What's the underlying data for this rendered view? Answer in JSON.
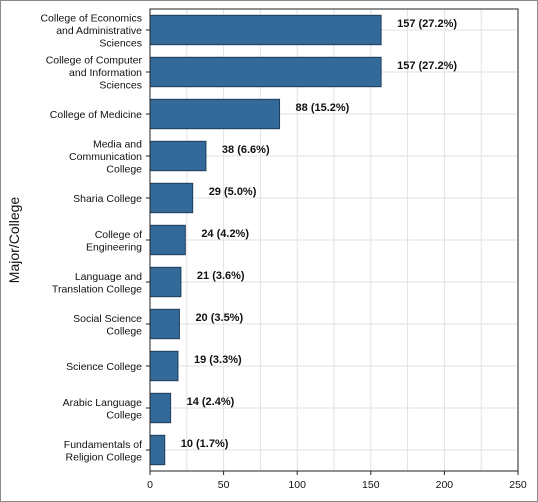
{
  "chart_data": {
    "type": "bar",
    "orientation": "horizontal",
    "title": "",
    "xlabel": "",
    "ylabel": "Major/College",
    "xlim": [
      0,
      250
    ],
    "xticks": [
      0,
      50,
      100,
      150,
      200,
      250
    ],
    "grid": true,
    "bar_color": "#336a9a",
    "bar_edge_color": "#1f3e5c",
    "categories": [
      [
        "College of Economics",
        "and Administrative",
        "Sciences"
      ],
      [
        "College of Computer",
        "and Information",
        "Sciences"
      ],
      [
        "College of Medicine"
      ],
      [
        "Media and",
        "Communication",
        "College"
      ],
      [
        "Sharia College"
      ],
      [
        "College of",
        "Engineering"
      ],
      [
        "Language and",
        "Translation College"
      ],
      [
        "Social Science",
        "College"
      ],
      [
        "Science College"
      ],
      [
        "Arabic Language",
        "College"
      ],
      [
        "Fundamentals of",
        "Religion College"
      ]
    ],
    "values": [
      157,
      157,
      88,
      38,
      29,
      24,
      21,
      20,
      19,
      14,
      10
    ],
    "data_labels": [
      "157 (27.2%)",
      "157 (27.2%)",
      "88 (15.2%)",
      "38 (6.6%)",
      "29 (5.0%)",
      "24 (4.2%)",
      "21 (3.6%)",
      "20 (3.5%)",
      "19 (3.3%)",
      "14 (2.4%)",
      "10 (1.7%)"
    ]
  }
}
